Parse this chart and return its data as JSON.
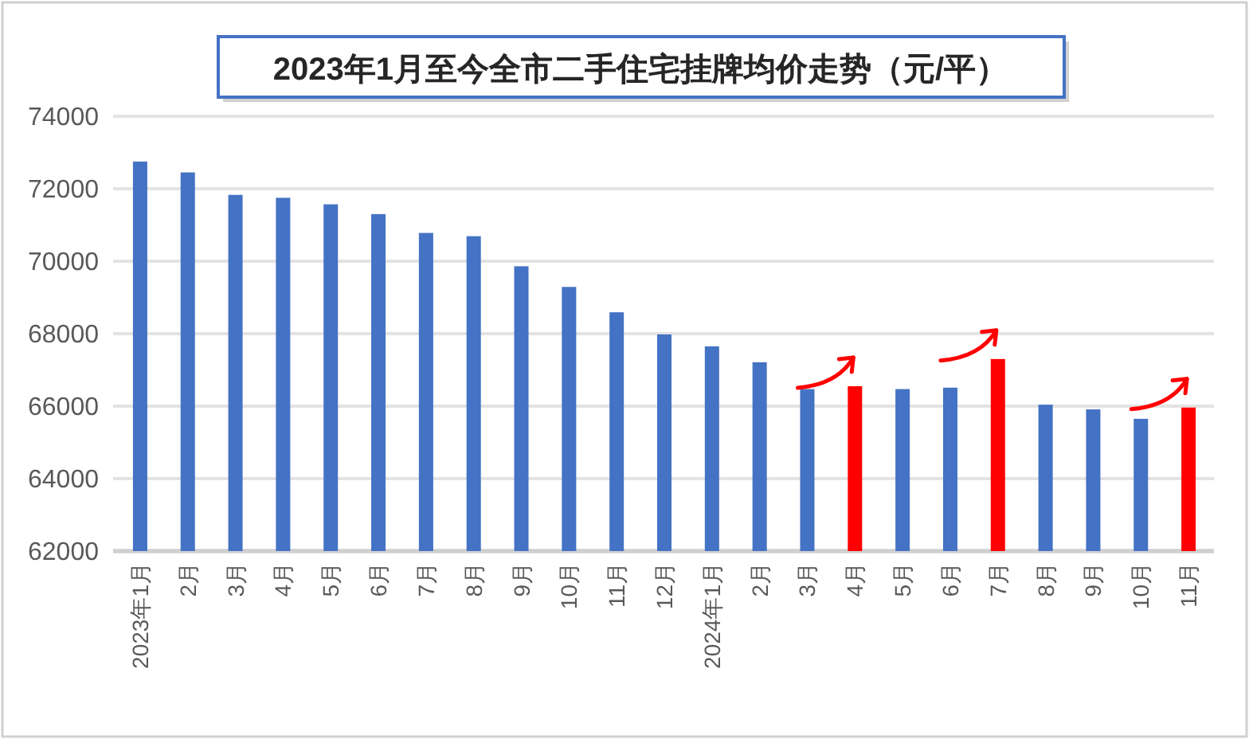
{
  "chart_data": {
    "type": "bar",
    "title": "2023年1月至今全市二手住宅挂牌均价走势（元/平）",
    "categories": [
      "2023年1月",
      "2月",
      "3月",
      "4月",
      "5月",
      "6月",
      "7月",
      "8月",
      "9月",
      "10月",
      "11月",
      "12月",
      "2024年1月",
      "2月",
      "3月",
      "4月",
      "5月",
      "6月",
      "7月",
      "8月",
      "9月",
      "10月",
      "11月"
    ],
    "values": [
      72750,
      72450,
      71830,
      71750,
      71570,
      71300,
      70780,
      70690,
      69860,
      69290,
      68590,
      67980,
      67650,
      67210,
      66470,
      66550,
      66470,
      66510,
      67300,
      66040,
      65910,
      65650,
      65960
    ],
    "colors": [
      "#4472c4",
      "#4472c4",
      "#4472c4",
      "#4472c4",
      "#4472c4",
      "#4472c4",
      "#4472c4",
      "#4472c4",
      "#4472c4",
      "#4472c4",
      "#4472c4",
      "#4472c4",
      "#4472c4",
      "#4472c4",
      "#4472c4",
      "#ff0000",
      "#4472c4",
      "#4472c4",
      "#ff0000",
      "#4472c4",
      "#4472c4",
      "#4472c4",
      "#ff0000"
    ],
    "ylim": [
      62000,
      74000
    ],
    "yticks": [
      62000,
      64000,
      66000,
      68000,
      70000,
      72000,
      74000
    ],
    "grid": "y"
  }
}
